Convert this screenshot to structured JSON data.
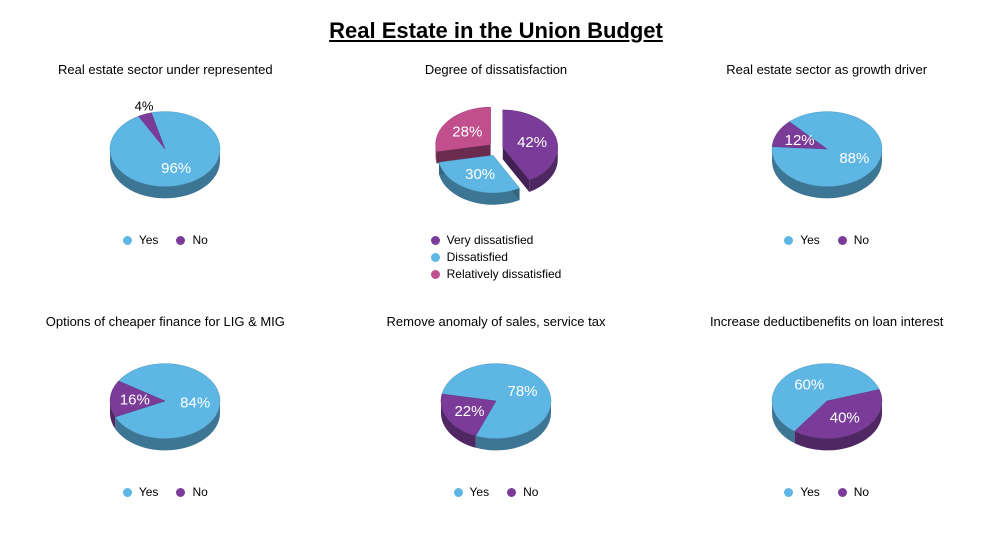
{
  "title": "Real Estate in the Union Budget",
  "palette": {
    "blue": "#5eb6e4",
    "purple": "#7a3c98",
    "magenta": "#c14e8d",
    "label_text": "#ffffff"
  },
  "slice_label_fontsize": 15,
  "pie_radius": 55,
  "charts": [
    {
      "id": "under_represented",
      "title": "Real estate sector under represented",
      "type": "pie",
      "exploded": false,
      "slices": [
        {
          "label": "Yes",
          "value": 96,
          "pct": "96%",
          "color": "#5eb6e4"
        },
        {
          "label": "No",
          "value": 4,
          "pct": "4%",
          "color": "#7a3c98"
        }
      ],
      "legend_layout": "row"
    },
    {
      "id": "dissatisfaction",
      "title": "Degree of dissatisfaction",
      "type": "pie",
      "exploded": true,
      "slices": [
        {
          "label": "Very dissatisfied",
          "value": 42,
          "pct": "42%",
          "color": "#7a3c98"
        },
        {
          "label": "Dissatisfied",
          "value": 30,
          "pct": "30%",
          "color": "#5eb6e4"
        },
        {
          "label": "Relatively dissatisfied",
          "value": 28,
          "pct": "28%",
          "color": "#c14e8d"
        }
      ],
      "legend_layout": "column"
    },
    {
      "id": "growth_driver",
      "title": "Real estate sector as growth driver",
      "type": "pie",
      "exploded": false,
      "slices": [
        {
          "label": "Yes",
          "value": 88,
          "pct": "88%",
          "color": "#5eb6e4"
        },
        {
          "label": "No",
          "value": 12,
          "pct": "12%",
          "color": "#7a3c98"
        }
      ],
      "legend_layout": "row"
    },
    {
      "id": "cheaper_finance",
      "title": "Options of cheaper finance for LIG & MIG",
      "type": "pie",
      "exploded": false,
      "slices": [
        {
          "label": "Yes",
          "value": 84,
          "pct": "84%",
          "color": "#5eb6e4"
        },
        {
          "label": "No",
          "value": 16,
          "pct": "16%",
          "color": "#7a3c98"
        }
      ],
      "legend_layout": "row"
    },
    {
      "id": "remove_tax",
      "title": "Remove anomaly of sales, service tax",
      "type": "pie",
      "exploded": false,
      "slices": [
        {
          "label": "Yes",
          "value": 78,
          "pct": "78%",
          "color": "#5eb6e4"
        },
        {
          "label": "No",
          "value": 22,
          "pct": "22%",
          "color": "#7a3c98"
        }
      ],
      "legend_layout": "row"
    },
    {
      "id": "loan_interest",
      "title": "Increase deductibenefits on loan interest",
      "type": "pie",
      "exploded": false,
      "slices": [
        {
          "label": "Yes",
          "value": 60,
          "pct": "60%",
          "color": "#5eb6e4"
        },
        {
          "label": "No",
          "value": 40,
          "pct": "40%",
          "color": "#7a3c98"
        }
      ],
      "legend_layout": "row"
    }
  ]
}
